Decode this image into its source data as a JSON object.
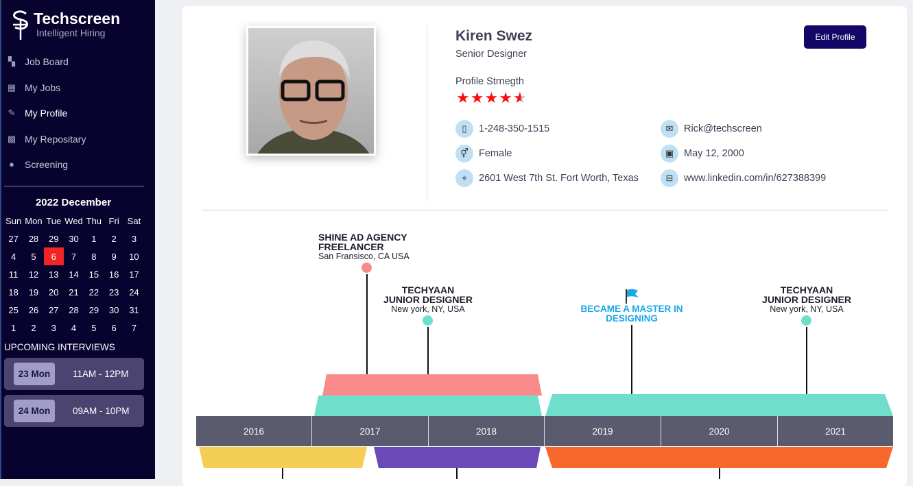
{
  "brand": {
    "name": "Techscreen",
    "tagline": "Intelligent Hiring"
  },
  "nav": [
    {
      "label": "Job Board",
      "icon": "board-icon"
    },
    {
      "label": "My Jobs",
      "icon": "store-icon"
    },
    {
      "label": "My Profile",
      "icon": "megaphone-icon"
    },
    {
      "label": "My Repositary",
      "icon": "grid-icon"
    },
    {
      "label": "Screening",
      "icon": "user-icon"
    }
  ],
  "calendar": {
    "title": "2022 December",
    "days": [
      "Sun",
      "Mon",
      "Tue",
      "Wed",
      "Thu",
      "Fri",
      "Sat"
    ],
    "dates": [
      "27",
      "28",
      "29",
      "30",
      "1",
      "2",
      "3",
      "4",
      "5",
      "6",
      "7",
      "8",
      "9",
      "10",
      "11",
      "12",
      "13",
      "14",
      "15",
      "16",
      "17",
      "18",
      "19",
      "20",
      "21",
      "22",
      "23",
      "24",
      "25",
      "26",
      "27",
      "28",
      "29",
      "30",
      "31",
      "1",
      "2",
      "3",
      "4",
      "5",
      "6",
      "7"
    ],
    "today_index": 9
  },
  "upcoming": {
    "title": "UPCOMING INTERVIEWS",
    "items": [
      {
        "day": "23 Mon",
        "time": "11AM - 12PM"
      },
      {
        "day": "24 Mon",
        "time": "09AM - 10PM"
      }
    ]
  },
  "profile": {
    "name": "Kiren Swez",
    "role": "Senior Designer",
    "strength_label": "Profile Strnegth",
    "rating": 4.5,
    "rating_max": 5,
    "edit_label": "Edit Profile",
    "phone": "1-248-350-1515",
    "email": "Rick@techscreen",
    "gender": "Female",
    "dob": "May 12, 2000",
    "address": "2601 West 7th St. Fort Worth, Texas",
    "linkedin": "www.linkedin.com/in/627388399"
  },
  "timeline": {
    "years": [
      "2016",
      "2017",
      "2018",
      "2019",
      "2020",
      "2021"
    ],
    "events": [
      {
        "company": "SHINE AD AGENCY",
        "title": "FREELANCER",
        "location": "San Fransisco, CA USA"
      },
      {
        "company": "TECHYAAN",
        "title": "JUNIOR DESIGNER",
        "location": "New york, NY, USA"
      },
      {
        "milestone": "BECAME A MASTER IN DESIGNING"
      },
      {
        "company": "TECHYAAN",
        "title": "JUNIOR DESIGNER",
        "location": "New york, NY, USA"
      }
    ]
  },
  "colors": {
    "sidebar": "#07032e",
    "accent": "#120766",
    "today": "#ef2525",
    "star": "#ff0d0d",
    "pink": "#f98a8a",
    "teal": "#6fdfcb",
    "yellow": "#f4ce55",
    "purple": "#6b4ab8",
    "orange": "#f8672c",
    "milestone": "#1aa7e8"
  }
}
